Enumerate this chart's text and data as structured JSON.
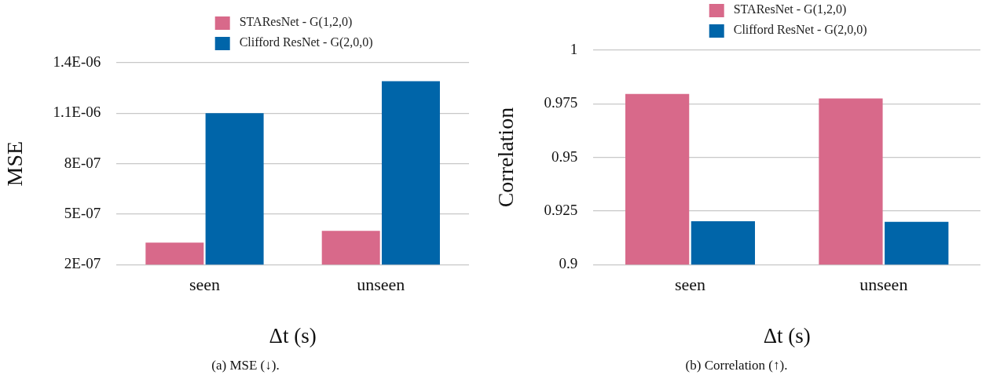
{
  "chart_data": [
    {
      "type": "bar",
      "categories": [
        "seen",
        "unseen"
      ],
      "xlabel": "Δt (s)",
      "ylabel": "MSE",
      "series": [
        {
          "name": "STAResNet - G(1,2,0)",
          "color": "#d8698a",
          "values": [
            3.3e-07,
            4e-07
          ]
        },
        {
          "name": "Clifford ResNet - G(2,0,0)",
          "color": "#0065a9",
          "values": [
            1.1e-06,
            1.29e-06
          ]
        }
      ],
      "ylim": [
        2e-07,
        1.4e-06
      ],
      "yticks": [
        {
          "value": 2e-07,
          "label": "2E-07"
        },
        {
          "value": 5e-07,
          "label": "5E-07"
        },
        {
          "value": 8e-07,
          "label": "8E-07"
        },
        {
          "value": 1.1e-06,
          "label": "1.1E-06"
        },
        {
          "value": 1.4e-06,
          "label": "1.4E-06"
        }
      ],
      "grid": "y",
      "legend": "top",
      "annotations": [
        "(a) MSE (↓)."
      ]
    },
    {
      "type": "bar",
      "categories": [
        "seen",
        "unseen"
      ],
      "xlabel": "Δt (s)",
      "ylabel": "Correlation",
      "series": [
        {
          "name": "STAResNet - G(1,2,0)",
          "color": "#d8698a",
          "values": [
            0.9796,
            0.9775
          ]
        },
        {
          "name": "Clifford ResNet - G(2,0,0)",
          "color": "#0065a9",
          "values": [
            0.9202,
            0.9199
          ]
        }
      ],
      "ylim": [
        0.9,
        1
      ],
      "yticks": [
        0.9,
        0.925,
        0.95,
        0.975,
        1
      ],
      "grid": "y",
      "legend": "top",
      "annotations": [
        "(b) Correlation (↑)."
      ]
    }
  ]
}
